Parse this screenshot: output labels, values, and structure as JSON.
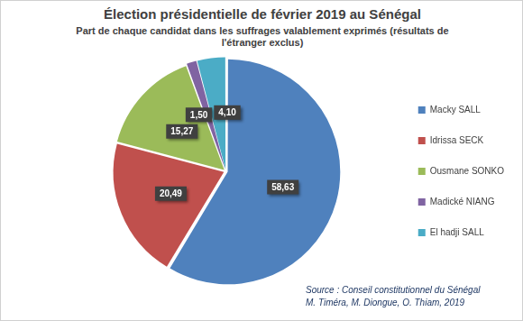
{
  "chart_data": {
    "type": "pie",
    "title": "Élection présidentielle de février 2019 au Sénégal",
    "subtitle": "Part de chaque candidat dans les suffrages valablement exprimés (résultats de l'étranger exclus)",
    "categories": [
      "Macky SALL",
      "Idrissa SECK",
      "Ousmane SONKO",
      "Madické NIANG",
      "El hadji SALL"
    ],
    "values": [
      58.63,
      20.49,
      15.27,
      1.5,
      4.1
    ],
    "value_labels": [
      "58,63",
      "20,49",
      "15,27",
      "1,50",
      "4,10"
    ],
    "colors": [
      "#4f81bd",
      "#c0504d",
      "#9bbb59",
      "#8064a2",
      "#4bacc6"
    ],
    "data_labels": true,
    "legend": "right",
    "annotations": [
      "Source :  Conseil constitutionnel du Sénégal",
      "M. Timéra, M. Diongue, O. Thiam, 2019"
    ]
  }
}
